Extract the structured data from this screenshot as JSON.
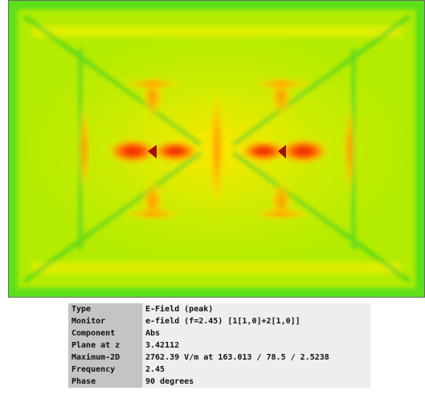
{
  "table": {
    "rows": [
      [
        "Type",
        "E-Field (peak)"
      ],
      [
        "Monitor",
        "e-field (f=2.45) [1[1,0]+2[1,0]]"
      ],
      [
        "Component",
        "Abs"
      ],
      [
        "Plane at z",
        "3.42112"
      ],
      [
        "Maximum-2D",
        "2762.39 V/m at 163.013 / 78.5 / 2.5238"
      ],
      [
        "Frequency",
        "2.45"
      ],
      [
        "Phase",
        "90 degrees"
      ]
    ]
  }
}
